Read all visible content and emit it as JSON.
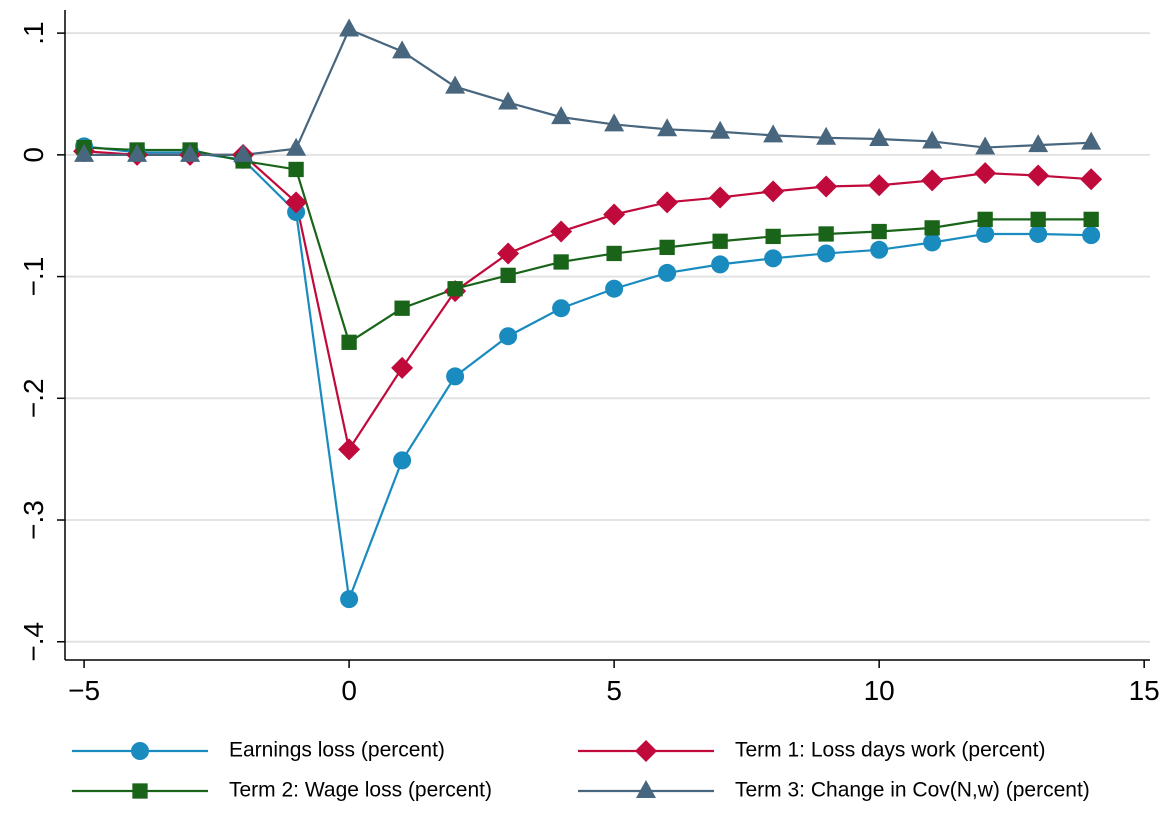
{
  "chart_data": {
    "type": "line",
    "x": [
      -5,
      -4,
      -3,
      -2,
      -1,
      0,
      1,
      2,
      3,
      4,
      5,
      6,
      7,
      8,
      9,
      10,
      11,
      12,
      13,
      14
    ],
    "series": [
      {
        "name": "Earnings loss (percent)",
        "color": "#1a8bbf",
        "marker": "circle",
        "values": [
          0.007,
          0.002,
          0.002,
          -0.004,
          -0.047,
          -0.365,
          -0.251,
          -0.182,
          -0.149,
          -0.126,
          -0.11,
          -0.097,
          -0.09,
          -0.085,
          -0.081,
          -0.078,
          -0.072,
          -0.065,
          -0.065,
          -0.066
        ]
      },
      {
        "name": "Term 1: Loss days work (percent)",
        "color": "#c10a3c",
        "marker": "diamond",
        "values": [
          0.003,
          0,
          0,
          0,
          -0.039,
          -0.242,
          -0.175,
          -0.112,
          -0.081,
          -0.063,
          -0.049,
          -0.039,
          -0.035,
          -0.03,
          -0.026,
          -0.025,
          -0.021,
          -0.015,
          -0.017,
          -0.02
        ]
      },
      {
        "name": "Term 2: Wage loss (percent)",
        "color": "#196419",
        "marker": "square",
        "values": [
          0.006,
          0.004,
          0.004,
          -0.005,
          -0.012,
          -0.154,
          -0.126,
          -0.11,
          -0.099,
          -0.088,
          -0.081,
          -0.076,
          -0.071,
          -0.067,
          -0.065,
          -0.063,
          -0.06,
          -0.053,
          -0.053,
          -0.053
        ]
      },
      {
        "name": "Term 3: Change in Cov(N,w) (percent)",
        "color": "#48667e",
        "marker": "triangle",
        "values": [
          0,
          0,
          0,
          0,
          0.005,
          0.103,
          0.085,
          0.056,
          0.043,
          0.031,
          0.025,
          0.021,
          0.019,
          0.016,
          0.014,
          0.013,
          0.011,
          0.006,
          0.008,
          0.01
        ]
      }
    ],
    "xlim": [
      -5.36,
      15.11
    ],
    "xticks": [
      {
        "value": -5,
        "label": "−5"
      },
      0,
      5,
      10,
      15
    ],
    "ylim": [
      -0.415,
      0.119
    ],
    "yticks": [
      {
        "value": -0.4,
        "label": "−.4"
      },
      {
        "value": -0.3,
        "label": "−.3"
      },
      {
        "value": -0.2,
        "label": "−.2"
      },
      {
        "value": -0.1,
        "label": "−.1"
      },
      0,
      {
        "value": 0.1,
        "label": ".1"
      }
    ],
    "grid": true,
    "legend": "bottom"
  }
}
